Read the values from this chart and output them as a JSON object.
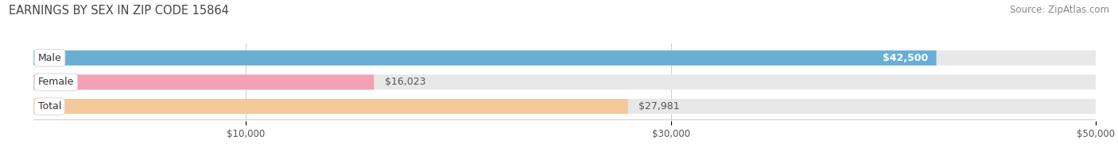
{
  "title": "EARNINGS BY SEX IN ZIP CODE 15864",
  "source": "Source: ZipAtlas.com",
  "categories": [
    "Male",
    "Female",
    "Total"
  ],
  "values": [
    42500,
    16023,
    27981
  ],
  "bar_colors": [
    "#6aaed6",
    "#f4a0b5",
    "#f5c999"
  ],
  "bar_bg_color": "#e8e8e8",
  "value_labels": [
    "$42,500",
    "$16,023",
    "$27,981"
  ],
  "value_label_inside": [
    true,
    false,
    false
  ],
  "xlim": [
    0,
    50000
  ],
  "xticks": [
    10000,
    30000,
    50000
  ],
  "xtick_labels": [
    "$10,000",
    "$30,000",
    "$50,000"
  ],
  "bg_color": "#ffffff",
  "title_fontsize": 10.5,
  "source_fontsize": 8.5,
  "bar_label_fontsize": 9,
  "value_label_fontsize": 9
}
